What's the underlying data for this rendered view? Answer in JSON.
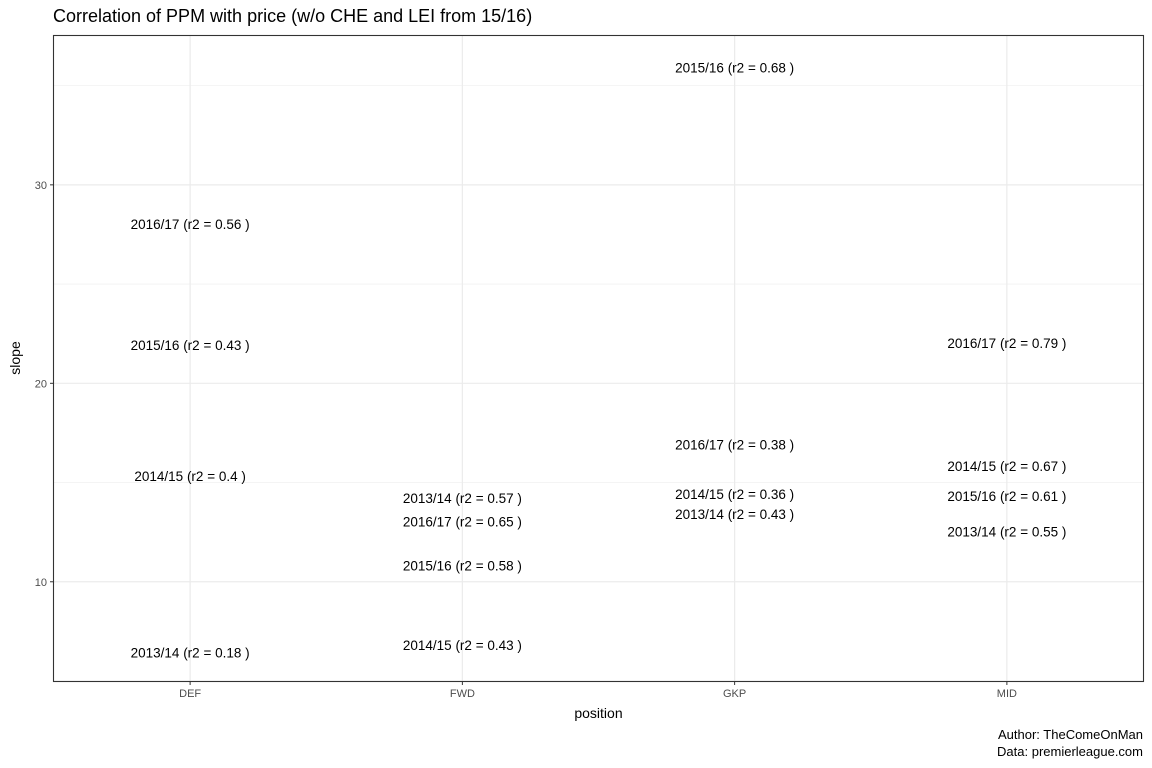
{
  "chart_data": {
    "type": "scatter",
    "title": "Correlation of PPM with price (w/o CHE and LEI from 15/16)",
    "xlabel": "position",
    "ylabel": "slope",
    "categories": [
      "DEF",
      "FWD",
      "GKP",
      "MID"
    ],
    "ylim": [
      5,
      37.5
    ],
    "yticks": [
      10,
      20,
      30
    ],
    "grid": true,
    "points": [
      {
        "category": "DEF",
        "y": 28.0,
        "label": "2016/17 (r2 = 0.56 )"
      },
      {
        "category": "DEF",
        "y": 21.9,
        "label": "2015/16 (r2 = 0.43 )"
      },
      {
        "category": "DEF",
        "y": 15.3,
        "label": "2014/15 (r2 = 0.4 )"
      },
      {
        "category": "DEF",
        "y": 6.4,
        "label": "2013/14 (r2 = 0.18 )"
      },
      {
        "category": "FWD",
        "y": 14.2,
        "label": "2013/14 (r2 = 0.57 )"
      },
      {
        "category": "FWD",
        "y": 13.0,
        "label": "2016/17 (r2 = 0.65 )"
      },
      {
        "category": "FWD",
        "y": 10.8,
        "label": "2015/16 (r2 = 0.58 )"
      },
      {
        "category": "FWD",
        "y": 6.8,
        "label": "2014/15 (r2 = 0.43 )"
      },
      {
        "category": "GKP",
        "y": 35.9,
        "label": "2015/16 (r2 = 0.68 )"
      },
      {
        "category": "GKP",
        "y": 16.9,
        "label": "2016/17 (r2 = 0.38 )"
      },
      {
        "category": "GKP",
        "y": 14.4,
        "label": "2014/15 (r2 = 0.36 )"
      },
      {
        "category": "GKP",
        "y": 13.4,
        "label": "2013/14 (r2 = 0.43 )"
      },
      {
        "category": "MID",
        "y": 22.0,
        "label": "2016/17 (r2 = 0.79 )"
      },
      {
        "category": "MID",
        "y": 15.8,
        "label": "2014/15 (r2 = 0.67 )"
      },
      {
        "category": "MID",
        "y": 14.3,
        "label": "2015/16 (r2 = 0.61 )"
      },
      {
        "category": "MID",
        "y": 12.5,
        "label": "2013/14 (r2 = 0.55 )"
      }
    ],
    "caption": [
      "Author: TheComeOnMan",
      "Data: premierleague.com"
    ]
  }
}
